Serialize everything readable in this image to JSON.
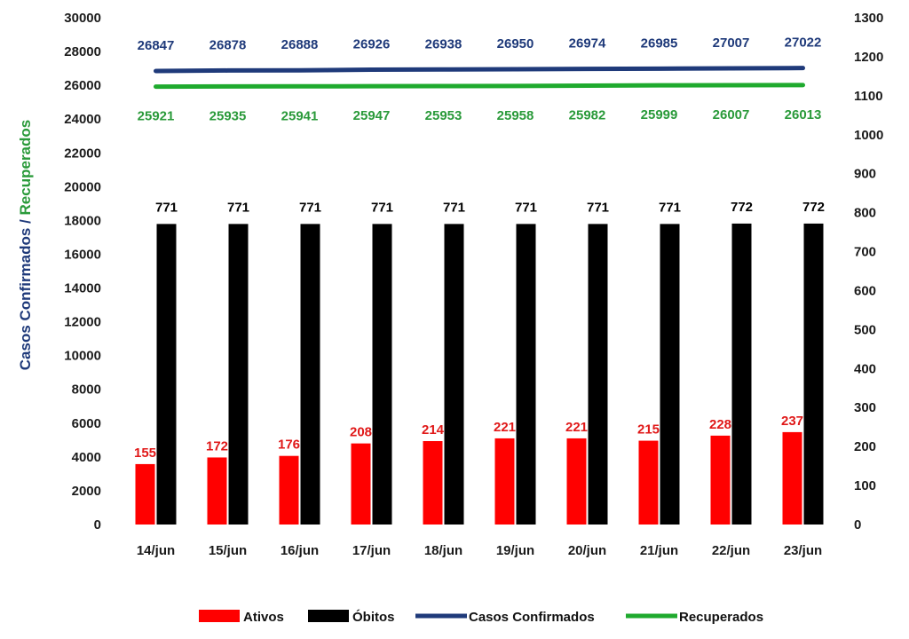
{
  "chart_data": {
    "type": "bar",
    "categories": [
      "14/jun",
      "15/jun",
      "16/jun",
      "17/jun",
      "18/jun",
      "19/jun",
      "20/jun",
      "21/jun",
      "22/jun",
      "23/jun"
    ],
    "y_left_range": [
      0,
      30000
    ],
    "y_left_ticks": [
      0,
      2000,
      4000,
      6000,
      8000,
      10000,
      12000,
      14000,
      16000,
      18000,
      20000,
      22000,
      24000,
      26000,
      28000,
      30000
    ],
    "y_right_range": [
      0,
      1300
    ],
    "y_right_ticks": [
      0,
      100,
      200,
      300,
      400,
      500,
      600,
      700,
      800,
      900,
      1000,
      1100,
      1200,
      1300
    ],
    "ylabel_part1": "Casos Confirmados",
    "ylabel_separator": " / ",
    "ylabel_part2": "Recuperados",
    "grid": false,
    "legend_position": "bottom",
    "series": [
      {
        "name": "Ativos",
        "type": "bar",
        "axis": "right",
        "color": "#ff0000",
        "values": [
          155,
          172,
          176,
          208,
          214,
          221,
          221,
          215,
          228,
          237
        ]
      },
      {
        "name": "Óbitos",
        "type": "bar",
        "axis": "right",
        "color": "#000000",
        "values": [
          771,
          771,
          771,
          771,
          771,
          771,
          771,
          771,
          772,
          772
        ]
      },
      {
        "name": "Casos Confirmados",
        "type": "line",
        "axis": "left",
        "color": "#1f3a7a",
        "label_color": "#1f3a7a",
        "values": [
          26847,
          26878,
          26888,
          26926,
          26938,
          26950,
          26974,
          26985,
          27007,
          27022
        ]
      },
      {
        "name": "Recuperados",
        "type": "line",
        "axis": "left",
        "color": "#1faa2e",
        "label_color": "#2a9a3a",
        "values": [
          25921,
          25935,
          25941,
          25947,
          25953,
          25958,
          25982,
          25999,
          26007,
          26013
        ]
      }
    ]
  }
}
